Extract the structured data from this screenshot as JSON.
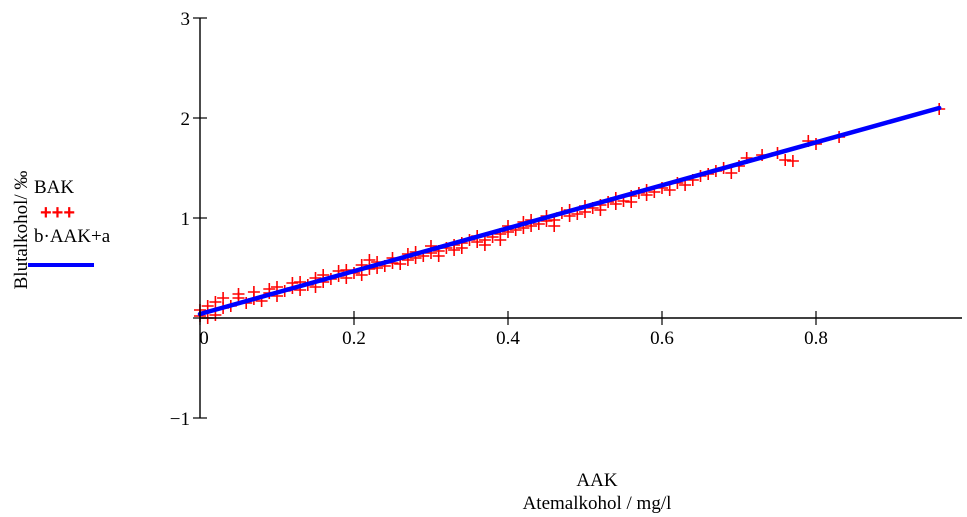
{
  "chart_data": {
    "type": "scatter",
    "title": "",
    "xlabel_lines": [
      "AAK",
      "Atemalkohol / mg/l"
    ],
    "ylabel": "Blutalkohol/ ‰",
    "xlim": [
      0,
      0.97
    ],
    "ylim": [
      -1,
      3
    ],
    "x_ticks": [
      {
        "value": 0,
        "label": "0"
      },
      {
        "value": 0.2,
        "label": "0.2"
      },
      {
        "value": 0.4,
        "label": "0.4"
      },
      {
        "value": 0.6,
        "label": "0.6"
      },
      {
        "value": 0.8,
        "label": "0.8"
      }
    ],
    "y_ticks": [
      {
        "value": -1,
        "label": "−1"
      },
      {
        "value": 0,
        "label": ""
      },
      {
        "value": 1,
        "label": "1"
      },
      {
        "value": 2,
        "label": "2"
      },
      {
        "value": 3,
        "label": "3"
      }
    ],
    "grid": false,
    "legend_position": "left",
    "series": [
      {
        "name": "BAK",
        "marker_label": "+++",
        "kind": "scatter",
        "color": "#ff0000",
        "points": [
          [
            0.0,
            0.02
          ],
          [
            0.0,
            0.08
          ],
          [
            0.01,
            0.0
          ],
          [
            0.01,
            0.12
          ],
          [
            0.02,
            0.03
          ],
          [
            0.02,
            0.16
          ],
          [
            0.03,
            0.1
          ],
          [
            0.03,
            0.2
          ],
          [
            0.04,
            0.12
          ],
          [
            0.05,
            0.2
          ],
          [
            0.05,
            0.24
          ],
          [
            0.06,
            0.15
          ],
          [
            0.07,
            0.19
          ],
          [
            0.07,
            0.26
          ],
          [
            0.08,
            0.17
          ],
          [
            0.09,
            0.25
          ],
          [
            0.09,
            0.29
          ],
          [
            0.1,
            0.22
          ],
          [
            0.1,
            0.31
          ],
          [
            0.11,
            0.27
          ],
          [
            0.12,
            0.3
          ],
          [
            0.12,
            0.35
          ],
          [
            0.13,
            0.28
          ],
          [
            0.13,
            0.36
          ],
          [
            0.14,
            0.33
          ],
          [
            0.15,
            0.31
          ],
          [
            0.15,
            0.4
          ],
          [
            0.16,
            0.36
          ],
          [
            0.16,
            0.43
          ],
          [
            0.17,
            0.39
          ],
          [
            0.18,
            0.42
          ],
          [
            0.18,
            0.47
          ],
          [
            0.19,
            0.4
          ],
          [
            0.19,
            0.48
          ],
          [
            0.2,
            0.45
          ],
          [
            0.21,
            0.43
          ],
          [
            0.21,
            0.53
          ],
          [
            0.22,
            0.49
          ],
          [
            0.22,
            0.58
          ],
          [
            0.23,
            0.56
          ],
          [
            0.23,
            0.5
          ],
          [
            0.24,
            0.52
          ],
          [
            0.25,
            0.55
          ],
          [
            0.25,
            0.6
          ],
          [
            0.26,
            0.54
          ],
          [
            0.27,
            0.58
          ],
          [
            0.27,
            0.64
          ],
          [
            0.28,
            0.6
          ],
          [
            0.28,
            0.66
          ],
          [
            0.29,
            0.62
          ],
          [
            0.3,
            0.65
          ],
          [
            0.3,
            0.72
          ],
          [
            0.31,
            0.67
          ],
          [
            0.31,
            0.62
          ],
          [
            0.32,
            0.7
          ],
          [
            0.33,
            0.73
          ],
          [
            0.33,
            0.68
          ],
          [
            0.34,
            0.75
          ],
          [
            0.34,
            0.7
          ],
          [
            0.35,
            0.78
          ],
          [
            0.36,
            0.76
          ],
          [
            0.36,
            0.82
          ],
          [
            0.37,
            0.78
          ],
          [
            0.37,
            0.73
          ],
          [
            0.38,
            0.81
          ],
          [
            0.39,
            0.84
          ],
          [
            0.39,
            0.78
          ],
          [
            0.4,
            0.86
          ],
          [
            0.4,
            0.92
          ],
          [
            0.41,
            0.88
          ],
          [
            0.42,
            0.9
          ],
          [
            0.42,
            0.96
          ],
          [
            0.43,
            0.92
          ],
          [
            0.43,
            0.98
          ],
          [
            0.44,
            0.94
          ],
          [
            0.45,
            0.97
          ],
          [
            0.45,
            1.02
          ],
          [
            0.46,
            0.98
          ],
          [
            0.46,
            0.92
          ],
          [
            0.47,
            1.05
          ],
          [
            0.48,
            1.02
          ],
          [
            0.48,
            1.08
          ],
          [
            0.49,
            1.04
          ],
          [
            0.5,
            1.12
          ],
          [
            0.5,
            1.06
          ],
          [
            0.51,
            1.1
          ],
          [
            0.52,
            1.13
          ],
          [
            0.52,
            1.08
          ],
          [
            0.53,
            1.16
          ],
          [
            0.54,
            1.14
          ],
          [
            0.54,
            1.2
          ],
          [
            0.55,
            1.17
          ],
          [
            0.56,
            1.22
          ],
          [
            0.56,
            1.16
          ],
          [
            0.57,
            1.25
          ],
          [
            0.58,
            1.23
          ],
          [
            0.58,
            1.28
          ],
          [
            0.59,
            1.26
          ],
          [
            0.6,
            1.3
          ],
          [
            0.61,
            1.28
          ],
          [
            0.62,
            1.35
          ],
          [
            0.63,
            1.33
          ],
          [
            0.64,
            1.38
          ],
          [
            0.65,
            1.42
          ],
          [
            0.66,
            1.44
          ],
          [
            0.67,
            1.47
          ],
          [
            0.68,
            1.5
          ],
          [
            0.69,
            1.45
          ],
          [
            0.7,
            1.52
          ],
          [
            0.71,
            1.6
          ],
          [
            0.73,
            1.63
          ],
          [
            0.75,
            1.65
          ],
          [
            0.76,
            1.58
          ],
          [
            0.77,
            1.57
          ],
          [
            0.79,
            1.77
          ],
          [
            0.8,
            1.74
          ],
          [
            0.83,
            1.81
          ],
          [
            0.96,
            2.09
          ]
        ]
      },
      {
        "name": "b·AAK+a",
        "kind": "line",
        "color": "#0000ff",
        "points": [
          [
            0.0,
            0.04
          ],
          [
            0.96,
            2.1
          ]
        ]
      }
    ]
  }
}
